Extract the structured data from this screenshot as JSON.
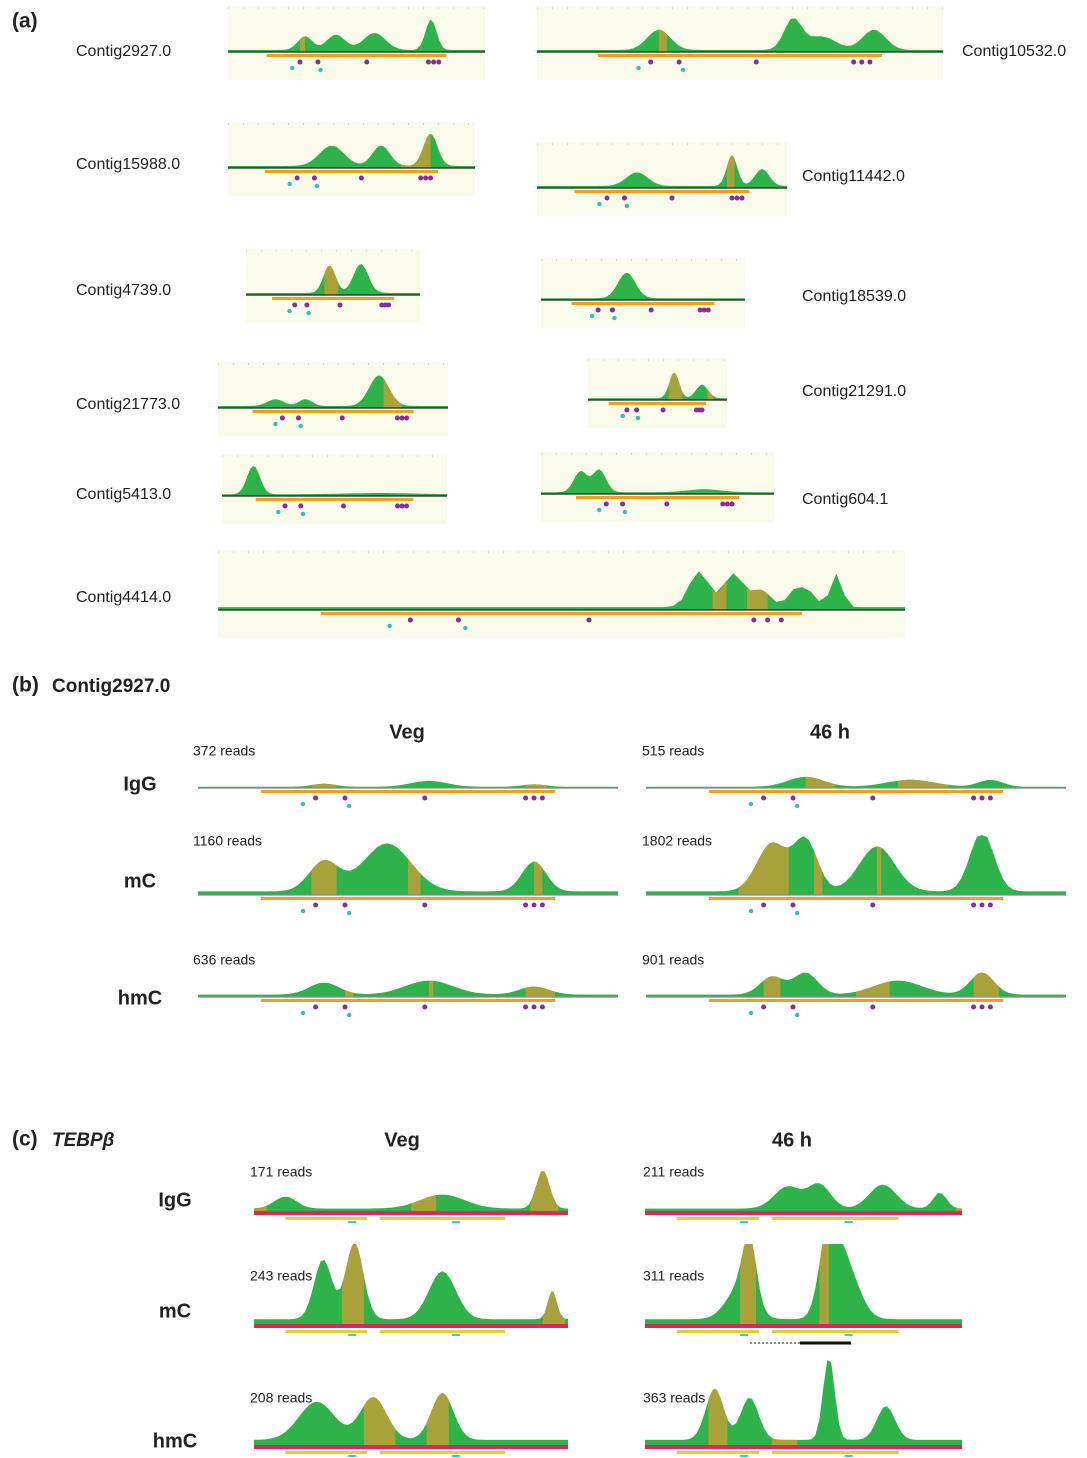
{
  "panel_a": {
    "label": "(a)",
    "contigs": [
      "Contig2927.0",
      "Contig10532.0",
      "Contig15988.0",
      "Contig11442.0",
      "Contig4739.0",
      "Contig18539.0",
      "Contig21773.0",
      "Contig21291.0",
      "Contig5413.0",
      "Contig604.1",
      "Contig4414.0"
    ]
  },
  "panel_b": {
    "label": "(b)",
    "title": "Contig2927.0",
    "columns": [
      "Veg",
      "46 h"
    ],
    "rows": [
      {
        "label": "IgG",
        "reads": [
          "372 reads",
          "515 reads"
        ]
      },
      {
        "label": "mC",
        "reads": [
          "1160 reads",
          "1802 reads"
        ]
      },
      {
        "label": "hmC",
        "reads": [
          "636 reads",
          "901 reads"
        ]
      }
    ]
  },
  "panel_c": {
    "label": "(c)",
    "title": "TEBPβ",
    "columns": [
      "Veg",
      "46 h"
    ],
    "rows": [
      {
        "label": "IgG",
        "reads": [
          "171 reads",
          "211 reads"
        ]
      },
      {
        "label": "mC",
        "reads": [
          "243 reads",
          "311 reads"
        ]
      },
      {
        "label": "hmC",
        "reads": [
          "208 reads",
          "363 reads"
        ]
      }
    ]
  }
}
